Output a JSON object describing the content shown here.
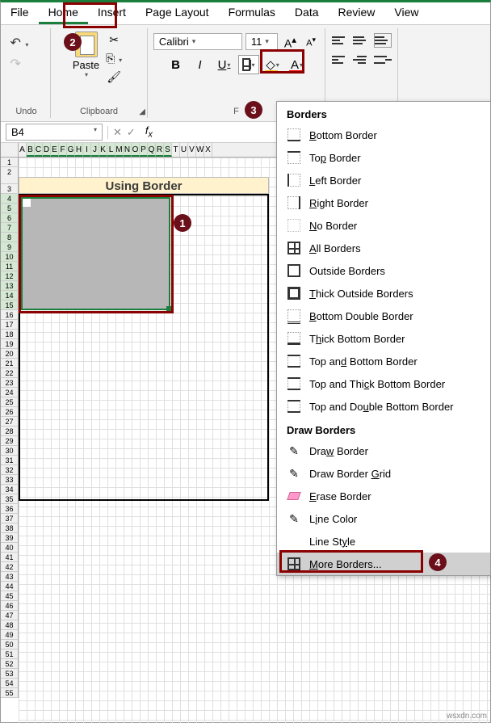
{
  "menu": {
    "file": "File",
    "home": "Home",
    "insert": "Insert",
    "pagelayout": "Page Layout",
    "formulas": "Formulas",
    "data": "Data",
    "review": "Review",
    "view": "View"
  },
  "ribbon": {
    "undo": "Undo",
    "clipboard": "Clipboard",
    "paste": "Paste",
    "font_name": "Calibri",
    "font_size": "11",
    "fill_color": "#ffc000",
    "font_color": "#ff0000",
    "underline_color": "#1f4e79"
  },
  "namebox": "B4",
  "merge_title": "Using Border",
  "columns": [
    "A",
    "B",
    "C",
    "D",
    "E",
    "F",
    "G",
    "H",
    "I",
    "J",
    "K",
    "L",
    "M",
    "N",
    "O",
    "P",
    "Q",
    "R",
    "S",
    "T",
    "U",
    "V",
    "W",
    "X"
  ],
  "badges": {
    "1": "1",
    "2": "2",
    "3": "3",
    "4": "4"
  },
  "dropdown": {
    "hdr1": "Borders",
    "items": [
      {
        "k": "bottom",
        "pre": "",
        "ul": "B",
        "post": "ottom Border"
      },
      {
        "k": "top",
        "pre": "To",
        "ul": "p",
        "post": " Border"
      },
      {
        "k": "left",
        "pre": "",
        "ul": "L",
        "post": "eft Border"
      },
      {
        "k": "right",
        "pre": "",
        "ul": "R",
        "post": "ight Border"
      },
      {
        "k": "no",
        "pre": "",
        "ul": "N",
        "post": "o Border"
      },
      {
        "k": "all",
        "pre": "",
        "ul": "A",
        "post": "ll Borders"
      },
      {
        "k": "out",
        "pre": "Outside Borders",
        "ul": "",
        "post": ""
      },
      {
        "k": "thick",
        "pre": "",
        "ul": "T",
        "post": "hick Outside Borders"
      },
      {
        "k": "bd",
        "pre": "",
        "ul": "B",
        "post": "ottom Double Border"
      },
      {
        "k": "tb",
        "pre": "T",
        "ul": "h",
        "post": "ick Bottom Border"
      },
      {
        "k": "tab",
        "pre": "Top an",
        "ul": "d",
        "post": " Bottom Border"
      },
      {
        "k": "tab",
        "pre": "Top and Thi",
        "ul": "c",
        "post": "k Bottom Border"
      },
      {
        "k": "tab",
        "pre": "Top and Do",
        "ul": "u",
        "post": "ble Bottom Border"
      }
    ],
    "hdr2": "Draw Borders",
    "items2": [
      {
        "k": "pen",
        "pre": "Dra",
        "ul": "w",
        "post": " Border"
      },
      {
        "k": "pen",
        "pre": "Draw Border ",
        "ul": "G",
        "post": "rid"
      },
      {
        "k": "eraser",
        "pre": "",
        "ul": "E",
        "post": "rase Border"
      },
      {
        "k": "linecolor",
        "pre": "L",
        "ul": "i",
        "post": "ne Color"
      },
      {
        "k": "",
        "pre": "Line St",
        "ul": "y",
        "post": "le"
      }
    ],
    "more": {
      "pre": "",
      "ul": "M",
      "post": "ore Borders..."
    }
  },
  "watermark": "wsxdn.com",
  "colors": {
    "badge": "#6b0f1a",
    "callout": "#8b0000",
    "accent": "#1a7f3c"
  }
}
